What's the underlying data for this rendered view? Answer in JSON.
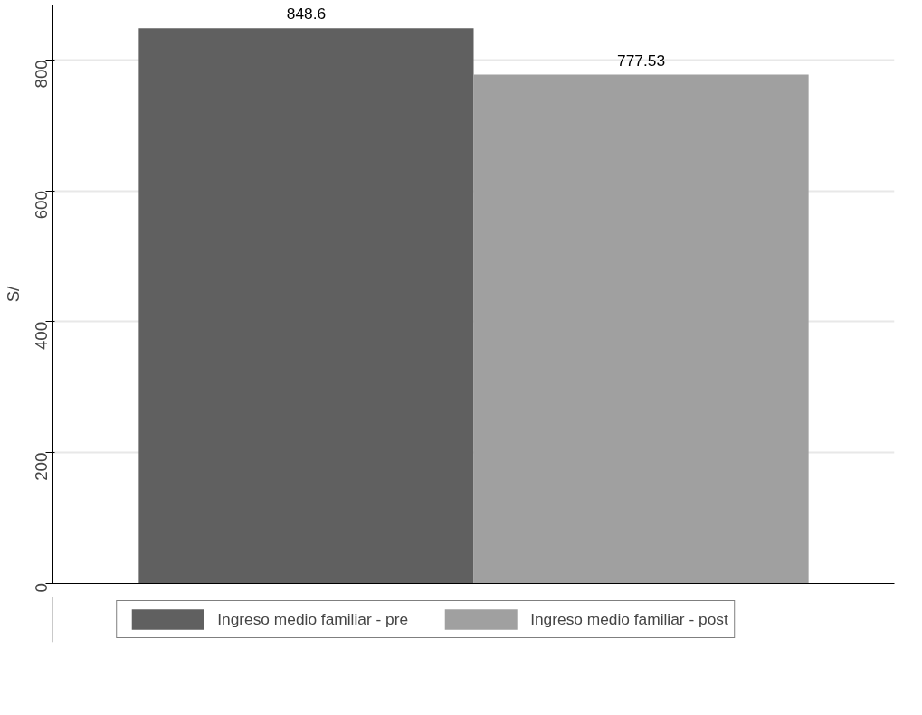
{
  "chart_data": {
    "type": "bar",
    "categories": [
      null
    ],
    "ylabel": "S/",
    "ylim": [
      0,
      884
    ],
    "yticks": [
      0,
      200,
      400,
      600,
      800
    ],
    "grid": "y",
    "legend": "bottom",
    "data_labels": true,
    "tick_labels": "y",
    "series": [
      {
        "name": "Ingreso medio familiar - pre",
        "color": "#606060",
        "values": [
          848.6
        ]
      },
      {
        "name": "Ingreso medio familiar - post",
        "color": "#a0a0a0",
        "values": [
          777.53
        ]
      }
    ]
  }
}
